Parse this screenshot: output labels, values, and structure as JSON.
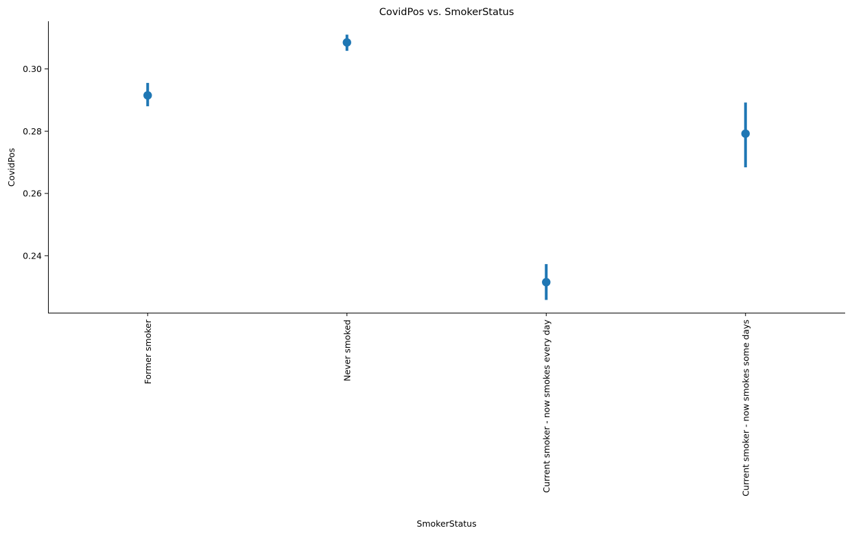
{
  "chart_data": {
    "type": "scatter",
    "subtype": "pointplot-with-error-bars",
    "title": "CovidPos vs. SmokerStatus",
    "xlabel": "SmokerStatus",
    "ylabel": "CovidPos",
    "categories": [
      "Former smoker",
      "Never smoked",
      "Current smoker - now smokes every day",
      "Current smoker - now smokes some days"
    ],
    "values": [
      0.2915,
      0.3085,
      0.2315,
      0.2792
    ],
    "error_low": [
      0.288,
      0.3058,
      0.2258,
      0.2684
    ],
    "error_high": [
      0.2955,
      0.311,
      0.2373,
      0.2892
    ],
    "yticks": [
      "0.24",
      "0.26",
      "0.28",
      "0.30"
    ],
    "ylim": [
      0.2217,
      0.3153
    ],
    "grid": false,
    "color": "#1f77b4",
    "x_tick_rotation": "vertical"
  }
}
